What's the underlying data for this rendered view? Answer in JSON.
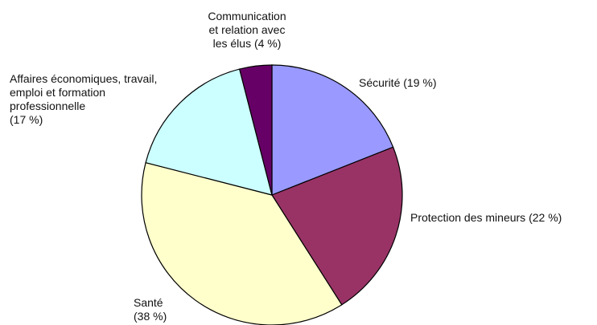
{
  "chart_data": {
    "type": "pie",
    "title": "",
    "slices": [
      {
        "label": "Sécurité",
        "value": 19,
        "display": [
          "Sécurité (19 %)"
        ],
        "color": "#9999ff"
      },
      {
        "label": "Protection des mineurs",
        "value": 22,
        "display": [
          "Protection des mineurs (22 %)"
        ],
        "color": "#993366"
      },
      {
        "label": "Santé",
        "value": 38,
        "display": [
          "Santé",
          "(38 %)"
        ],
        "color": "#ffffcc"
      },
      {
        "label": "Affaires économiques, travail, emploi et formation professionnelle",
        "value": 17,
        "display": [
          "Affaires économiques, travail,",
          "emploi et formation",
          "professionnelle",
          "(17 %)"
        ],
        "color": "#ccffff"
      },
      {
        "label": "Communication et relation avec les élus",
        "value": 4,
        "display": [
          "Communication",
          "et relation avec",
          "les élus (4 %)"
        ],
        "color": "#660066"
      }
    ],
    "start_angle_deg": 0,
    "direction": "clockwise",
    "legend": "none"
  }
}
